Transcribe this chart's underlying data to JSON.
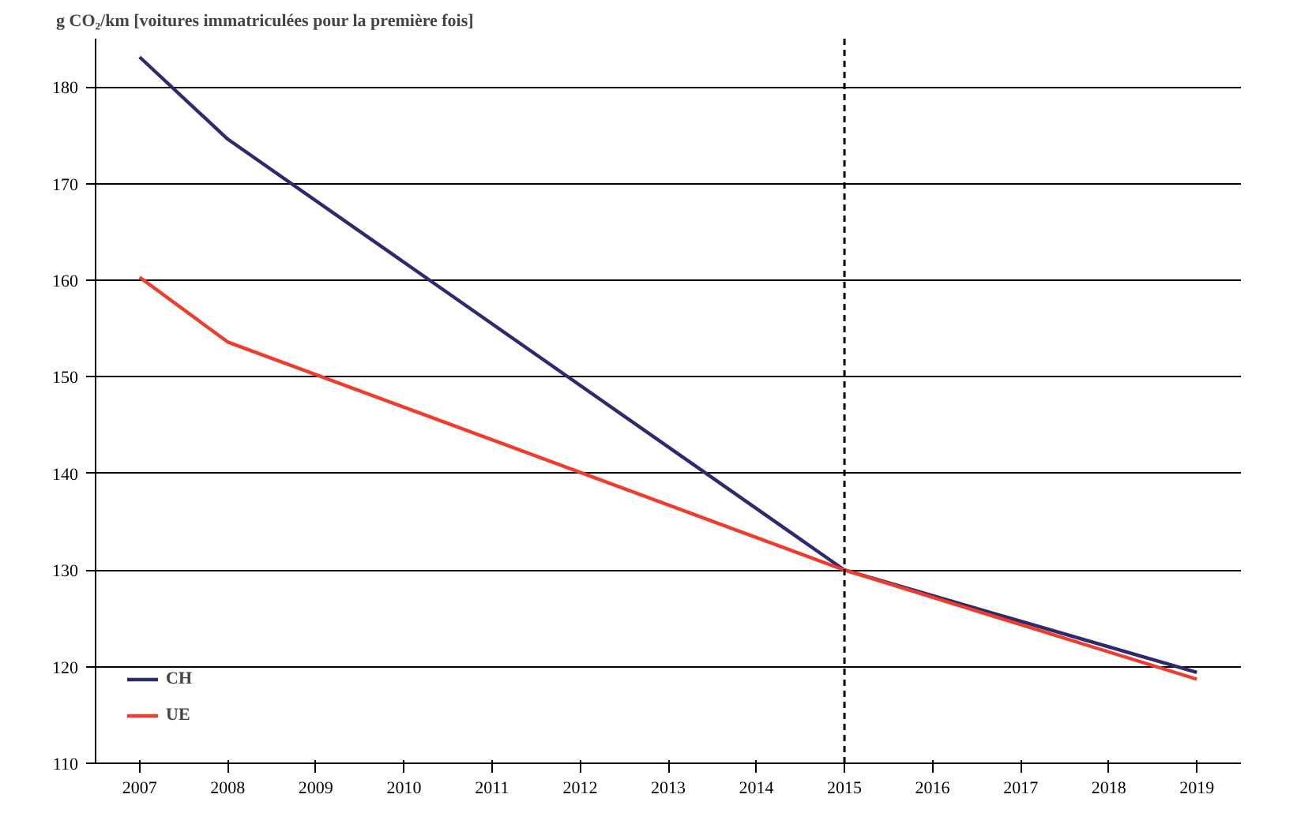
{
  "chart_data": {
    "type": "line",
    "ylabel": "g CO₂/km [voitures immatriculées pour la première fois]",
    "xlim": [
      2006.5,
      2019.5
    ],
    "xticks": [
      2007,
      2008,
      2009,
      2010,
      2011,
      2012,
      2013,
      2014,
      2015,
      2016,
      2017,
      2018,
      2019
    ],
    "ylim": [
      110,
      185
    ],
    "yticks": [
      110,
      120,
      130,
      140,
      150,
      160,
      170,
      180
    ],
    "series": [
      {
        "name": "CH",
        "color": "#2e2a6e",
        "x": [
          2007,
          2008,
          2015,
          2019
        ],
        "values": [
          183.1,
          174.6,
          130,
          119.4
        ]
      },
      {
        "name": "UE",
        "color": "#f03c2c",
        "x": [
          2007,
          2008,
          2015,
          2019
        ],
        "values": [
          160.3,
          153.6,
          130,
          118.7
        ]
      }
    ],
    "ref_lines": [
      {
        "axis": "x",
        "value": 2015,
        "color": "#000000",
        "line_style": "dashed"
      }
    ],
    "grid": "y",
    "legend": "bottom left",
    "line_style": "solid",
    "marker": "none"
  }
}
